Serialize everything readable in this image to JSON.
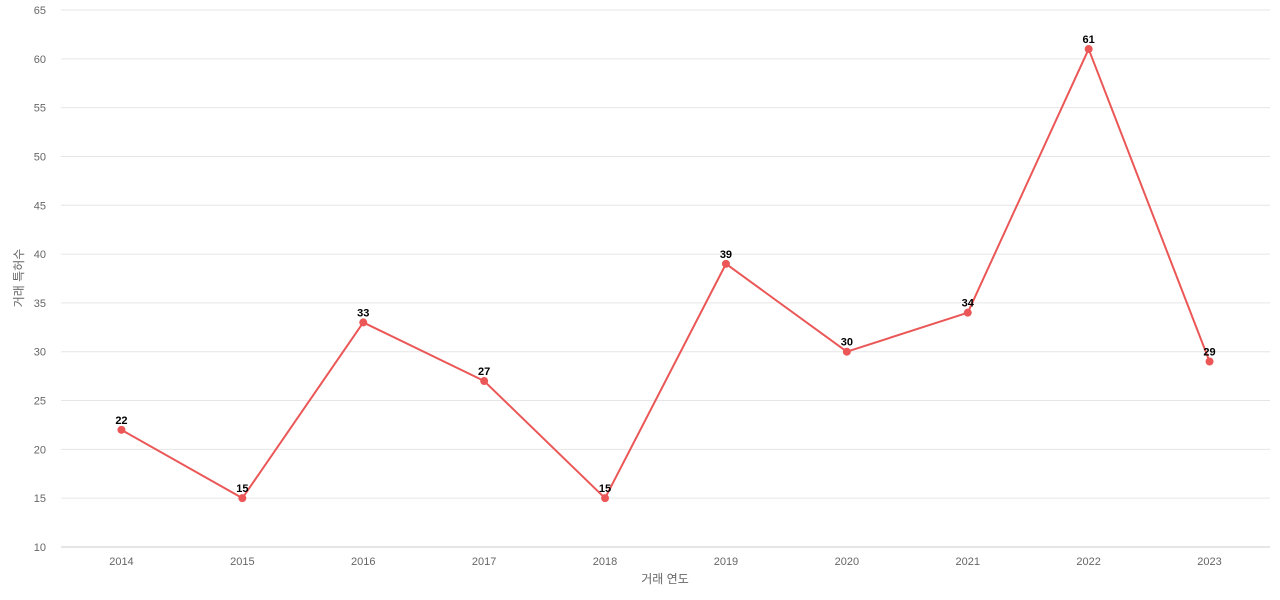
{
  "chart_data": {
    "type": "line",
    "title": "",
    "xlabel": "거래 연도",
    "ylabel": "거래 특허수",
    "categories": [
      "2014",
      "2015",
      "2016",
      "2017",
      "2018",
      "2019",
      "2020",
      "2021",
      "2022",
      "2023"
    ],
    "series": [
      {
        "name": "",
        "values": [
          22,
          15,
          33,
          27,
          15,
          39,
          30,
          34,
          61,
          29
        ],
        "color": "#eb5757"
      }
    ],
    "ylim": [
      10,
      65
    ],
    "yticks": [
      10,
      15,
      20,
      25,
      30,
      35,
      40,
      45,
      50,
      55,
      60,
      65
    ],
    "grid": true,
    "data_labels": true,
    "legend": "none"
  }
}
